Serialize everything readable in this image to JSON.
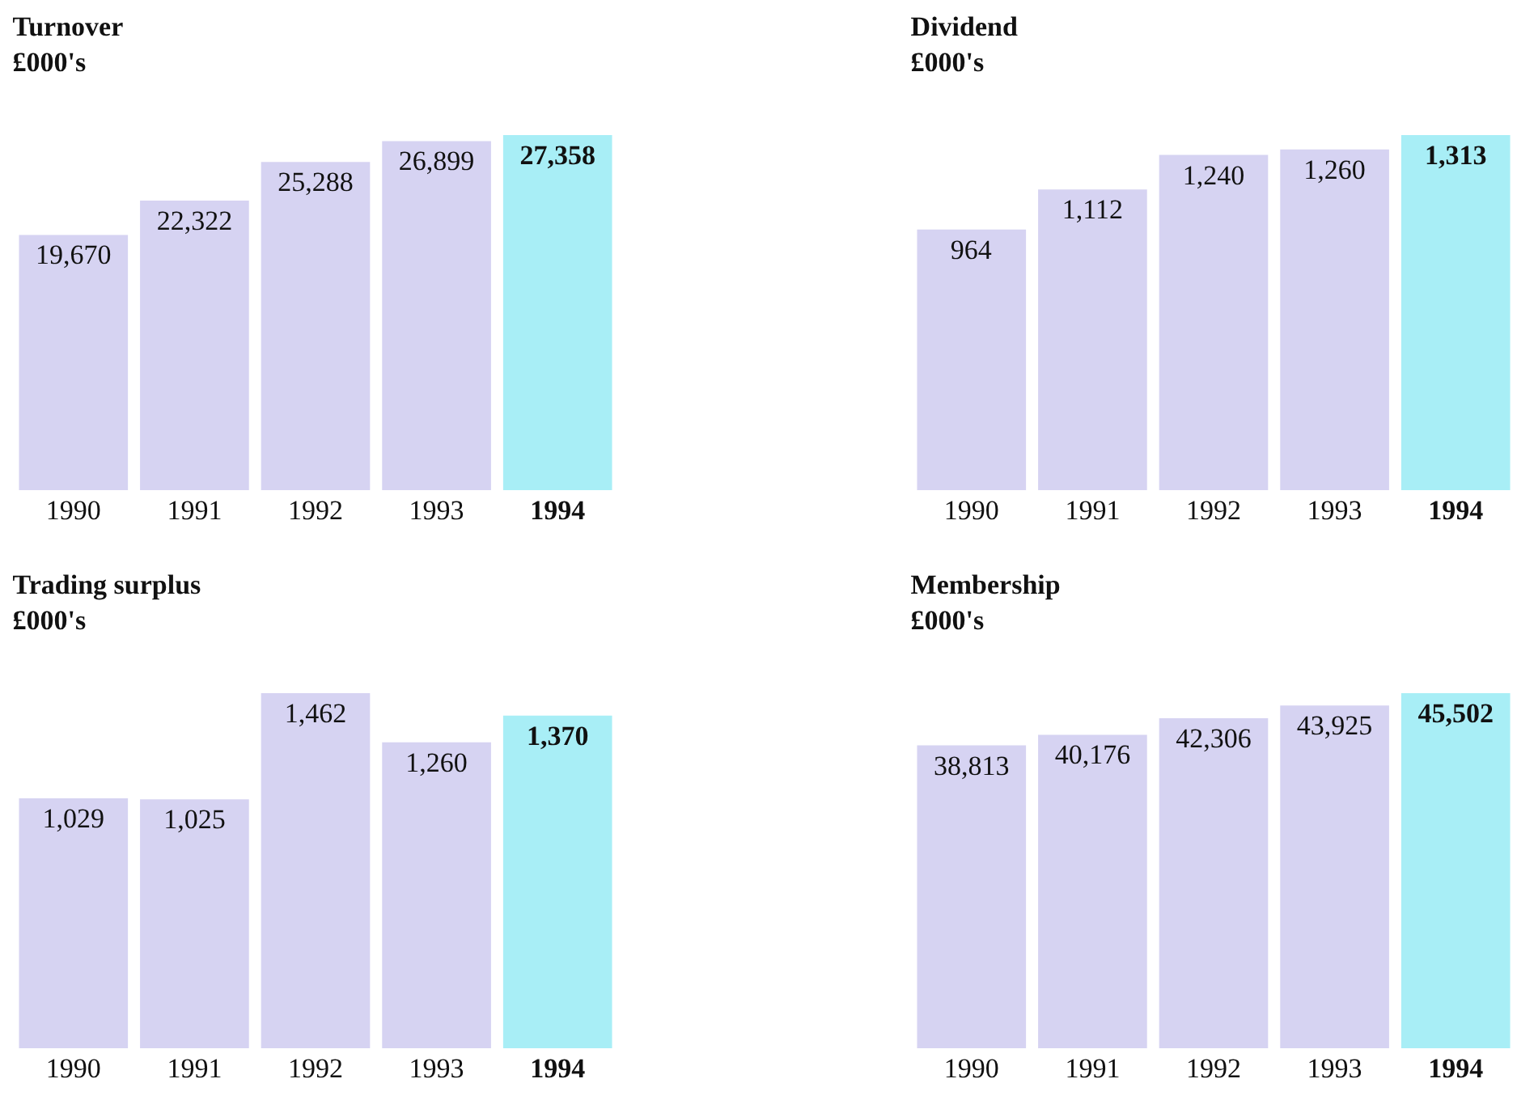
{
  "chart_data": [
    {
      "type": "bar",
      "title": "Turnover\n£000's",
      "categories": [
        "1990",
        "1991",
        "1992",
        "1993",
        "1994"
      ],
      "values": [
        19670,
        22322,
        25288,
        26899,
        27358
      ],
      "colors": [
        "#d6d3f2",
        "#d6d3f2",
        "#d6d3f2",
        "#d6d3f2",
        "#a8eef6"
      ],
      "data_labels": true,
      "value_labels": [
        "19,670",
        "22,322",
        "25,288",
        "26,899",
        "27,358"
      ],
      "grid": false
    },
    {
      "type": "bar",
      "title": "Dividend\n£000's",
      "categories": [
        "1990",
        "1991",
        "1992",
        "1993",
        "1994"
      ],
      "values": [
        964,
        1112,
        1240,
        1260,
        1313
      ],
      "colors": [
        "#d6d3f2",
        "#d6d3f2",
        "#d6d3f2",
        "#d6d3f2",
        "#a8eef6"
      ],
      "data_labels": true,
      "value_labels": [
        "964",
        "1,112",
        "1,240",
        "1,260",
        "1,313"
      ],
      "grid": false
    },
    {
      "type": "bar",
      "title": "Trading surplus\n£000's",
      "categories": [
        "1990",
        "1991",
        "1992",
        "1993",
        "1994"
      ],
      "values": [
        1029,
        1025,
        1462,
        1260,
        1370
      ],
      "colors": [
        "#d6d3f2",
        "#d6d3f2",
        "#d6d3f2",
        "#d6d3f2",
        "#a8eef6"
      ],
      "data_labels": true,
      "value_labels": [
        "1,029",
        "1,025",
        "1,462",
        "1,260",
        "1,370"
      ],
      "grid": false
    },
    {
      "type": "bar",
      "title": "Membership\n£000's",
      "categories": [
        "1990",
        "1991",
        "1992",
        "1993",
        "1994"
      ],
      "values": [
        38813,
        40176,
        42306,
        43925,
        45502
      ],
      "colors": [
        "#d6d3f2",
        "#d6d3f2",
        "#d6d3f2",
        "#d6d3f2",
        "#a8eef6"
      ],
      "data_labels": true,
      "value_labels": [
        "38,813",
        "40,176",
        "42,306",
        "43,925",
        "45,502"
      ],
      "grid": false
    }
  ]
}
